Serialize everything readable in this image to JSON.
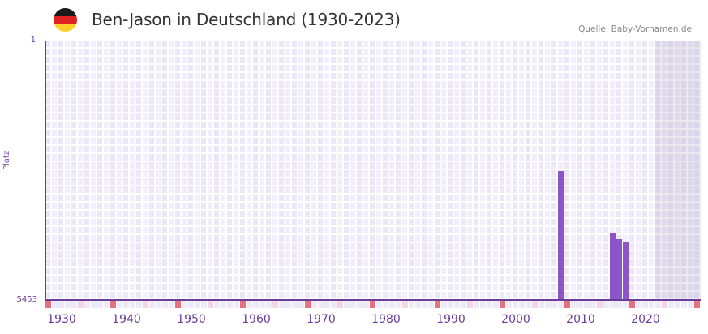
{
  "header": {
    "title": "Ben-Jason in Deutschland (1930-2023)",
    "source": "Quelle: Baby-Vornamen.de",
    "flag_colors": [
      "#1a1a1a",
      "#dd2222",
      "#fdd02b"
    ]
  },
  "axes": {
    "y_top_label": "1",
    "y_bottom_label": "5453",
    "y_title": "Platz",
    "x_labels": [
      "1930",
      "1940",
      "1950",
      "1960",
      "1970",
      "1980",
      "1990",
      "2000",
      "2010",
      "2020"
    ]
  },
  "colors": {
    "bar": "#8c56c8",
    "axis": "#6a3d9a",
    "decade_marker": "#e5727c",
    "half_decade_marker": "#f4d8e0",
    "future_shade": "#e2dcec"
  },
  "chart_data": {
    "type": "bar",
    "title": "Ben-Jason in Deutschland (1930-2023)",
    "subtitle": "Quelle: Baby-Vornamen.de",
    "xlabel": "",
    "ylabel": "Platz",
    "y_inverted": true,
    "ylim": [
      5453,
      1
    ],
    "x_range": [
      1928,
      2028
    ],
    "x_ticks": [
      1930,
      1940,
      1950,
      1960,
      1970,
      1980,
      1990,
      2000,
      2010,
      2020
    ],
    "grid": true,
    "shaded_future_from": 2022,
    "categories": [
      2007,
      2015,
      2016,
      2017
    ],
    "values": [
      2744,
      4039,
      4175,
      4243
    ],
    "series": [
      {
        "name": "Ben-Jason (Platz)",
        "x": [
          2007,
          2015,
          2016,
          2017
        ],
        "values": [
          2744,
          4039,
          4175,
          4243
        ]
      }
    ]
  }
}
